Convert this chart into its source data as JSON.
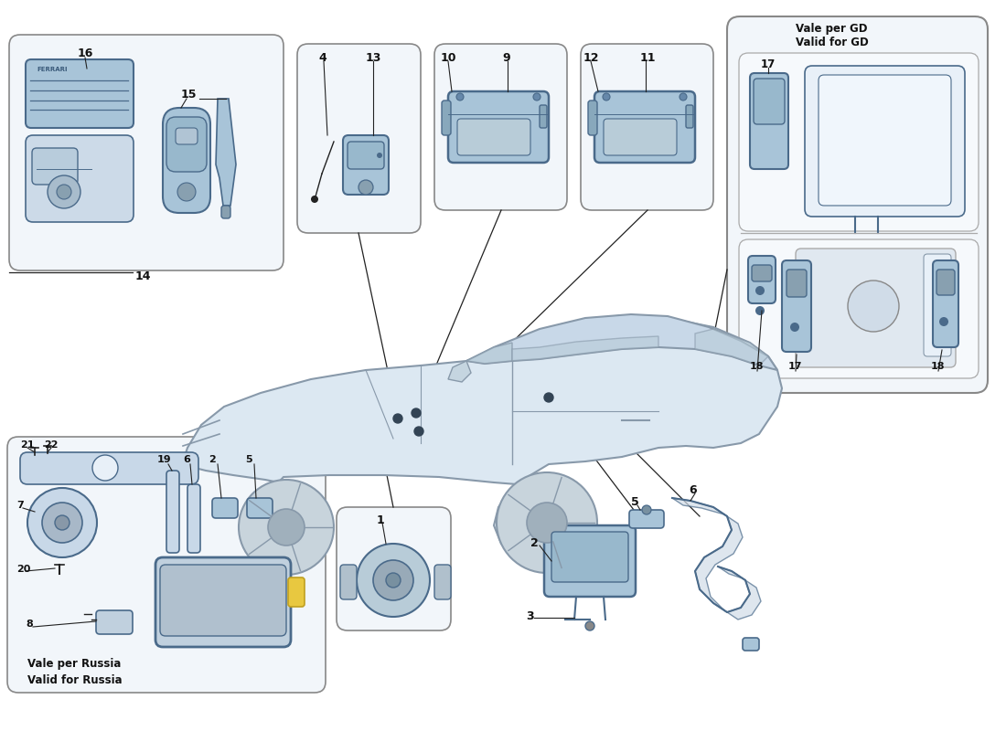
{
  "bg": "#ffffff",
  "pf": "#a8c4d8",
  "pe": "#4a6a8a",
  "bf": "#f2f6fa",
  "be": "#888888",
  "lc": "#222222",
  "tc": "#111111",
  "gd_label1": "Vale per GD",
  "gd_label2": "Valid for GD",
  "russia_label1": "Vale per Russia",
  "russia_label2": "Valid for Russia"
}
